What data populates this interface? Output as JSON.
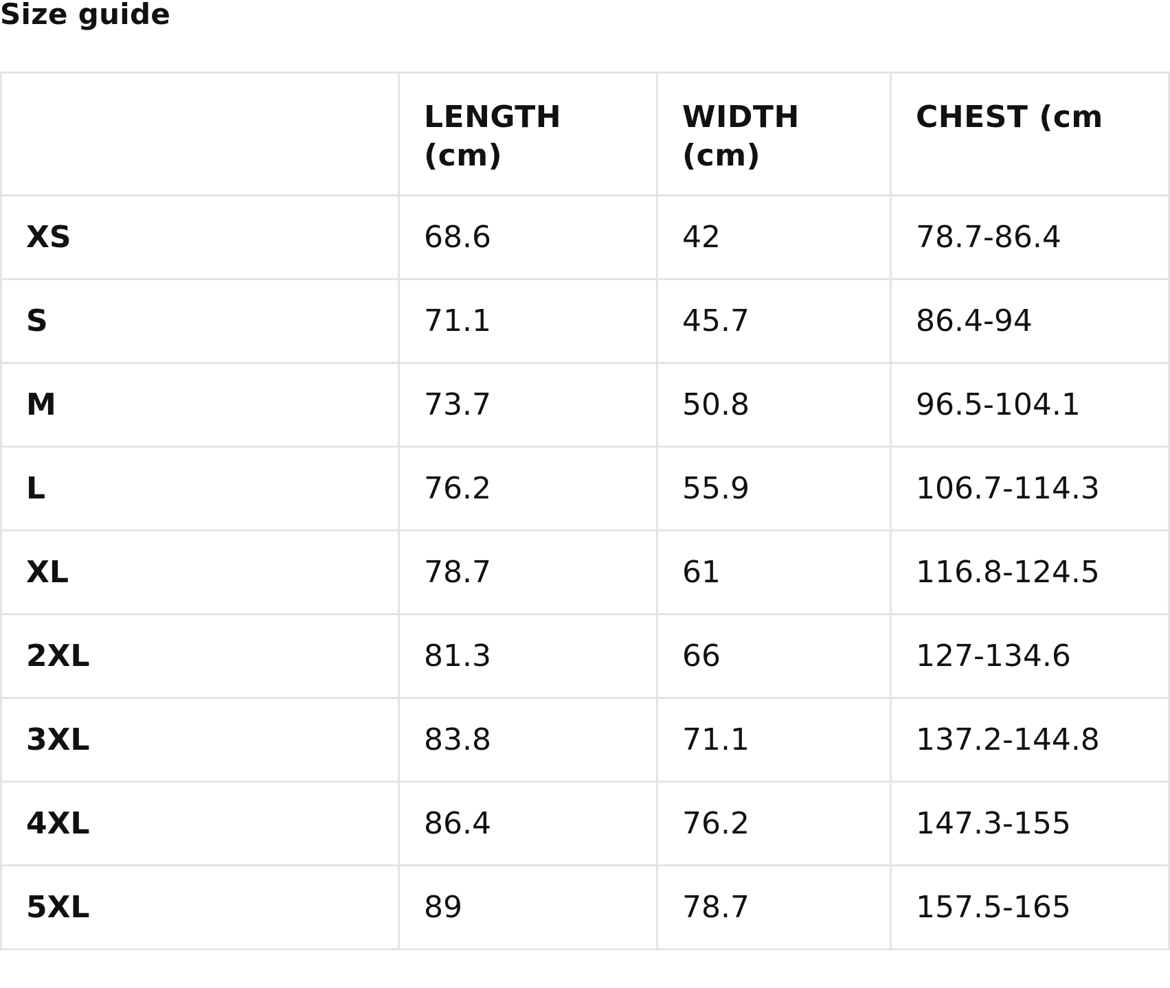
{
  "page": {
    "title": "Size guide"
  },
  "table": {
    "headers": [
      "",
      "LENGTH (cm)",
      "WIDTH (cm)",
      "CHEST (cm"
    ],
    "rows": [
      {
        "size": "XS",
        "length": "68.6",
        "width": "42",
        "chest": "78.7-86.4"
      },
      {
        "size": "S",
        "length": "71.1",
        "width": "45.7",
        "chest": "86.4-94"
      },
      {
        "size": "M",
        "length": "73.7",
        "width": "50.8",
        "chest": "96.5-104.1"
      },
      {
        "size": "L",
        "length": "76.2",
        "width": "55.9",
        "chest": "106.7-114.3"
      },
      {
        "size": "XL",
        "length": "78.7",
        "width": "61",
        "chest": "116.8-124.5"
      },
      {
        "size": "2XL",
        "length": "81.3",
        "width": "66",
        "chest": "127-134.6"
      },
      {
        "size": "3XL",
        "length": "83.8",
        "width": "71.1",
        "chest": "137.2-144.8"
      },
      {
        "size": "4XL",
        "length": "86.4",
        "width": "76.2",
        "chest": "147.3-155"
      },
      {
        "size": "5XL",
        "length": "89",
        "width": "78.7",
        "chest": "157.5-165"
      }
    ]
  },
  "colors": {
    "text": "#111111",
    "border": "#e4e4e4",
    "background": "#ffffff"
  }
}
